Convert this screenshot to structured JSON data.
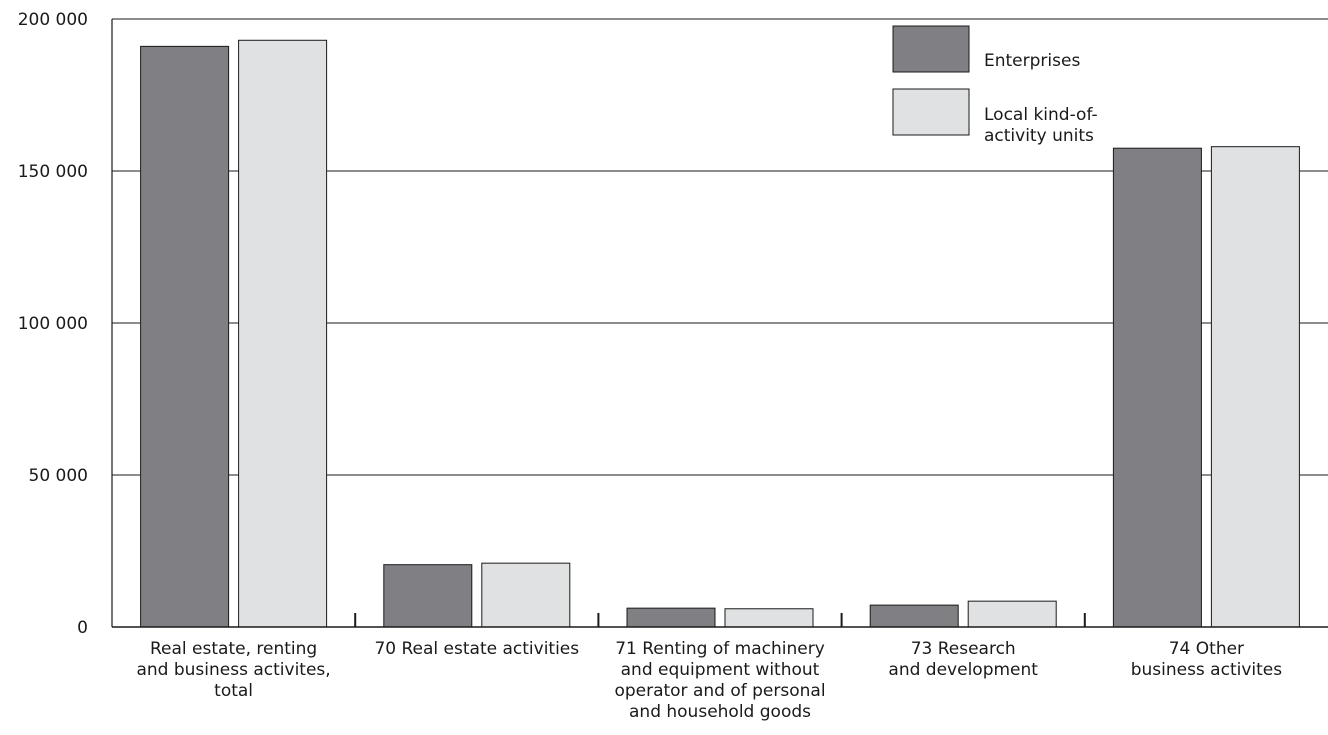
{
  "colors": {
    "enterprises": "#808084",
    "local_units": "#e0e1e3",
    "stroke": "#1a1a1a",
    "grid": "#1a1a1a"
  },
  "chart_data": {
    "type": "bar",
    "categories": [
      [
        "Real estate, renting",
        "and business activites,",
        "total"
      ],
      [
        "70 Real estate activities"
      ],
      [
        "71 Renting of machinery",
        "and equipment without",
        "operator and of personal",
        "and household goods"
      ],
      [
        "73 Research",
        "and development"
      ],
      [
        "74 Other",
        "business activites"
      ]
    ],
    "series": [
      {
        "name": "Enterprises",
        "values": [
          191000,
          20500,
          6200,
          7200,
          157500
        ]
      },
      {
        "name": "Local kind-of-activity units",
        "name_lines": [
          "Local kind-of-",
          "activity units"
        ],
        "values": [
          193000,
          21000,
          6000,
          8500,
          158000
        ]
      }
    ],
    "ylim": [
      0,
      200000
    ],
    "yticks": [
      0,
      50000,
      100000,
      150000,
      200000
    ],
    "ytick_labels": [
      "0",
      "50 000",
      "100 000",
      "150 000",
      "200 000"
    ],
    "grid": true,
    "legend": "top-right",
    "title": "",
    "xlabel": "",
    "ylabel": ""
  }
}
